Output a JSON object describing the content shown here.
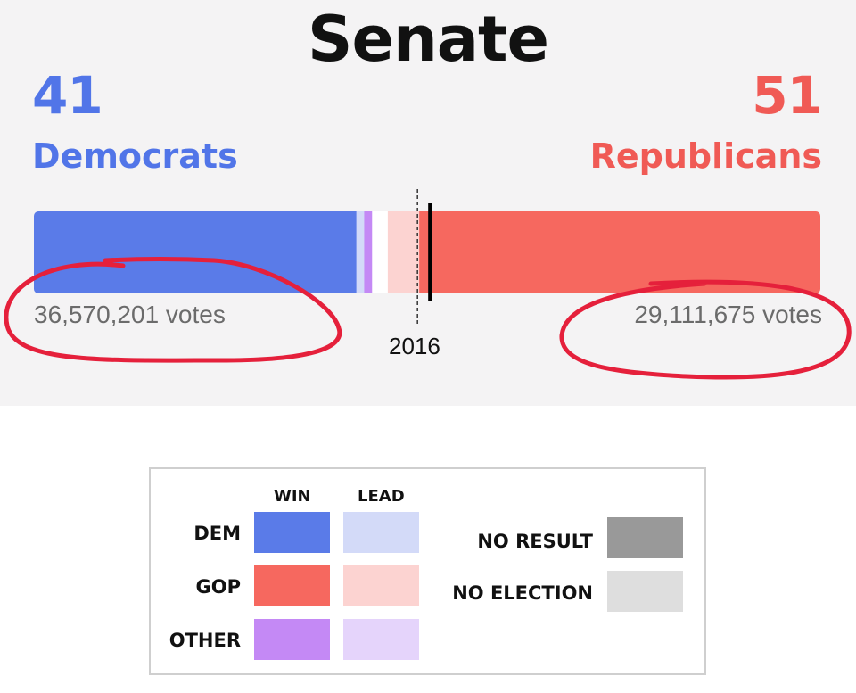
{
  "chart_data": {
    "type": "bar",
    "title": "Senate",
    "year_marker": "2016",
    "democrats": {
      "seats": "41",
      "label": "Democrats",
      "votes": "36,570,201 votes",
      "color": "#5a7be8"
    },
    "republicans": {
      "seats": "51",
      "label": "Republicans",
      "votes": "29,111,675 votes",
      "color": "#f6685f"
    },
    "segments": [
      {
        "category": "DEM WIN",
        "seats": 41,
        "color": "#5a7be8"
      },
      {
        "category": "DEM LEAD",
        "seats": 1,
        "color": "#d3daf8"
      },
      {
        "category": "OTHER WIN",
        "seats": 1,
        "color": "#c489f5"
      },
      {
        "category": "NO RESULT",
        "seats": 2,
        "color": "#ffffff"
      },
      {
        "category": "GOP LEAD",
        "seats": 4,
        "color": "#fcd3d1"
      },
      {
        "category": "GOP WIN",
        "seats": 51,
        "color": "#f6685f"
      }
    ],
    "total_seats": 100,
    "majority_line": 50,
    "legend": {
      "headers": {
        "win": "WIN",
        "lead": "LEAD"
      },
      "rows": [
        {
          "label": "DEM",
          "win_color": "#5a7be8",
          "lead_color": "#d3daf8"
        },
        {
          "label": "GOP",
          "win_color": "#f6685f",
          "lead_color": "#fcd3d1"
        },
        {
          "label": "OTHER",
          "win_color": "#c489f5",
          "lead_color": "#e5d4fb"
        }
      ],
      "extras": [
        {
          "label": "NO RESULT",
          "color": "#999999"
        },
        {
          "label": "NO ELECTION",
          "color": "#dedede"
        }
      ]
    }
  }
}
